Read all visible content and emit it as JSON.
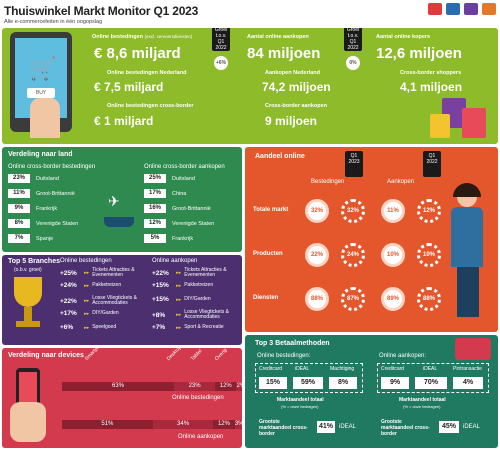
{
  "header": {
    "title": "Thuiswinkel Markt Monitor Q1 2023",
    "subtitle": "Alle e-commercefeiten in één oogopslag"
  },
  "top": {
    "online_bestedingen_label": "Online bestedingen",
    "online_bestedingen_note": "(excl. vervoersdiensten)",
    "online_bestedingen_value": "€ 8,6 miljard",
    "nl_label": "Online bestedingen Nederland",
    "nl_value": "€ 7,5 miljard",
    "cb_label": "Online bestedingen cross-border",
    "cb_value": "€ 1 miljard",
    "groei1": "Groei t.o.v. Q1 2022",
    "groei1_pct": "+6%",
    "aankopen_label": "Aantal online aankopen",
    "aankopen_value": "84 miljoen",
    "aankopen_nl_label": "Aankopen Nederland",
    "aankopen_nl_value": "74,2 miljoen",
    "aankopen_cb_label": "Cross-border aankopen",
    "aankopen_cb_value": "9 miljoen",
    "groei2": "Groei t.o.v. Q1 2022",
    "groei2_pct": "0%",
    "kopers_label": "Aantal online kopers",
    "kopers_value": "12,6 miljoen",
    "cb_shoppers_label": "Cross-border shoppers",
    "cb_shoppers_value": "4,1 miljoen"
  },
  "land": {
    "title": "Verdeling naar land",
    "left_title": "Online cross-border bestedingen",
    "right_title": "Online cross-border aankopen",
    "left": [
      {
        "pct": "23%",
        "name": "Duitsland"
      },
      {
        "pct": "11%",
        "name": "Groot-Brittannië"
      },
      {
        "pct": "9%",
        "name": "Frankrijk"
      },
      {
        "pct": "8%",
        "name": "Verenigde Staten"
      },
      {
        "pct": "7%",
        "name": "Spanje"
      }
    ],
    "right": [
      {
        "pct": "25%",
        "name": "Duitsland"
      },
      {
        "pct": "17%",
        "name": "China"
      },
      {
        "pct": "16%",
        "name": "Groot-Brittannië"
      },
      {
        "pct": "12%",
        "name": "Verenigde Staten"
      },
      {
        "pct": "5%",
        "name": "Frankrijk"
      }
    ]
  },
  "branches": {
    "title": "Top 5 Branches",
    "subtitle": "(o.b.v. groei)",
    "left_title": "Online bestedingen",
    "right_title": "Online aankopen",
    "left": [
      {
        "pct": "+25%",
        "name": "Tickets Attracties & Evenementen"
      },
      {
        "pct": "+24%",
        "name": "Pakketreizen"
      },
      {
        "pct": "+22%",
        "name": "Losse Vliegtickets & Accommodaties"
      },
      {
        "pct": "+17%",
        "name": "DIY/Garden"
      },
      {
        "pct": "+6%",
        "name": "Speelgoed"
      }
    ],
    "right": [
      {
        "pct": "+22%",
        "name": "Tickets Attracties & Evenementen"
      },
      {
        "pct": "+15%",
        "name": "Pakketreizen"
      },
      {
        "pct": "+15%",
        "name": "DIY/Garden"
      },
      {
        "pct": "+8%",
        "name": "Losse Vliegtickets & Accommodaties"
      },
      {
        "pct": "+7%",
        "name": "Sport & Recreatie"
      }
    ]
  },
  "devices": {
    "title": "Verdeling naar devices",
    "col_labels": [
      "Smartphone",
      "Desktop",
      "Tablet",
      "Overig"
    ],
    "bestedingen_label": "Online bestedingen",
    "aankopen_label": "Online aankopen",
    "bestedingen": [
      "63%",
      "23%",
      "12%",
      "2%"
    ],
    "aankopen": [
      "51%",
      "34%",
      "12%",
      "3%"
    ]
  },
  "aandeel": {
    "title": "Aandeel online",
    "col1": "Bestedingen",
    "col2": "Aankopen",
    "badge_q1_2023": "Q1 2023",
    "badge_q1_2022": "Q1 2022",
    "rows": [
      {
        "name": "Totale markt",
        "v": [
          "32%",
          "32%",
          "11%",
          "12%"
        ]
      },
      {
        "name": "Producten",
        "v": [
          "22%",
          "24%",
          "10%",
          "10%"
        ]
      },
      {
        "name": "Diensten",
        "v": [
          "88%",
          "87%",
          "89%",
          "88%"
        ]
      }
    ]
  },
  "betaal": {
    "title": "Top 3 Betaalmethoden",
    "left_title": "Online bestedingen:",
    "right_title": "Online aankopen:",
    "left": [
      {
        "name": "Creditcard",
        "pct": "15%"
      },
      {
        "name": "iDEAL",
        "pct": "59%"
      },
      {
        "name": "Machtiging",
        "pct": "8%"
      }
    ],
    "right": [
      {
        "name": "Creditcard",
        "pct": "9%"
      },
      {
        "name": "iDEAL",
        "pct": "70%"
      },
      {
        "name": "Pintransactie",
        "pct": "4%"
      }
    ],
    "mark_label": "Marktaandeel totaal",
    "mark_sub": "(% = onze bedragen)",
    "grootste_left": "Grootste marktaandeel cross-border",
    "grootste_right": "Grootste marktaandeel cross-border",
    "left_big_pct": "41%",
    "left_big_name": "iDEAL",
    "right_big_pct": "45%",
    "right_big_name": "iDEAL"
  },
  "colors": {
    "green_top": "#8dbb2a",
    "green_dark": "#2f8a4f",
    "purple": "#4b2f6f",
    "red": "#d33a4d",
    "orange": "#e4572d",
    "teal": "#1f7a61"
  }
}
